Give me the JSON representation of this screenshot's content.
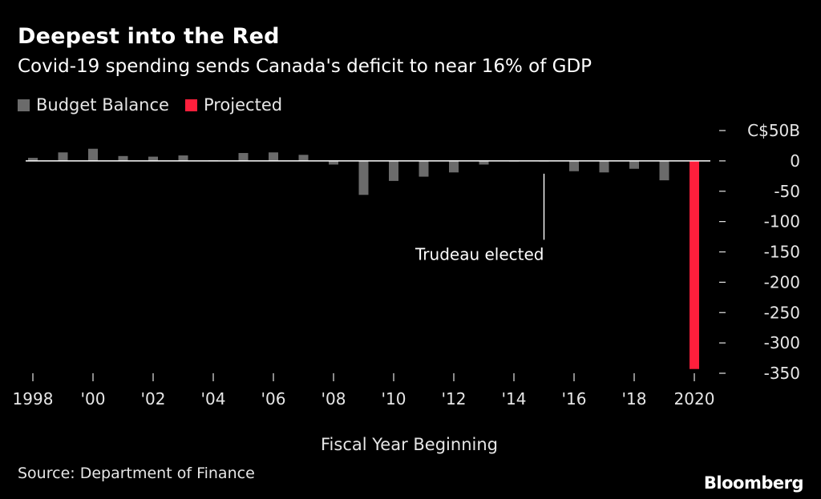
{
  "title": "Deepest into the Red",
  "subtitle": "Covid-19 spending sends Canada's deficit to near 16% of GDP",
  "legend": [
    {
      "label": "Budget Balance",
      "color": "#6b6b6b"
    },
    {
      "label": "Projected",
      "color": "#ff1f3c"
    }
  ],
  "xlabel": "Fiscal Year Beginning",
  "source": "Source: Department of Finance",
  "brand": "Bloomberg",
  "annotation": {
    "text": "Trudeau elected",
    "year": 2015
  },
  "chart_data": {
    "type": "bar",
    "title": "Deepest into the Red",
    "xlabel": "Fiscal Year Beginning",
    "ylabel": "",
    "unit_label": "C$50B",
    "ylim": [
      -350,
      50
    ],
    "y_ticks": [
      50,
      0,
      -50,
      -100,
      -150,
      -200,
      -250,
      -300,
      -350
    ],
    "y_tick_labels": [
      "C$50B",
      "0",
      "-50",
      "-100",
      "-150",
      "-200",
      "-250",
      "-300",
      "-350"
    ],
    "x_tick_labels": [
      {
        "year": 1998,
        "label": "1998"
      },
      {
        "year": 2000,
        "label": "'00"
      },
      {
        "year": 2002,
        "label": "'02"
      },
      {
        "year": 2004,
        "label": "'04"
      },
      {
        "year": 2006,
        "label": "'06"
      },
      {
        "year": 2008,
        "label": "'08"
      },
      {
        "year": 2010,
        "label": "'10"
      },
      {
        "year": 2012,
        "label": "'12"
      },
      {
        "year": 2014,
        "label": "'14"
      },
      {
        "year": 2016,
        "label": "'16"
      },
      {
        "year": 2018,
        "label": "'18"
      },
      {
        "year": 2020,
        "label": "2020"
      }
    ],
    "categories": [
      1998,
      1999,
      2000,
      2001,
      2002,
      2003,
      2004,
      2005,
      2006,
      2007,
      2008,
      2009,
      2010,
      2011,
      2012,
      2013,
      2014,
      2015,
      2016,
      2017,
      2018,
      2019,
      2020
    ],
    "series": [
      {
        "name": "Budget Balance",
        "color": "#6b6b6b",
        "values": [
          5,
          14,
          20,
          8,
          7,
          9,
          1,
          13,
          14,
          10,
          -6,
          -56,
          -33,
          -26,
          -19,
          -6,
          -1,
          -1,
          -17,
          -19,
          -13,
          -32,
          null
        ]
      },
      {
        "name": "Projected",
        "color": "#ff1f3c",
        "values": [
          null,
          null,
          null,
          null,
          null,
          null,
          null,
          null,
          null,
          null,
          null,
          null,
          null,
          null,
          null,
          null,
          null,
          null,
          null,
          null,
          null,
          null,
          -343
        ]
      }
    ],
    "grid": false,
    "legend_position": "top-left"
  }
}
